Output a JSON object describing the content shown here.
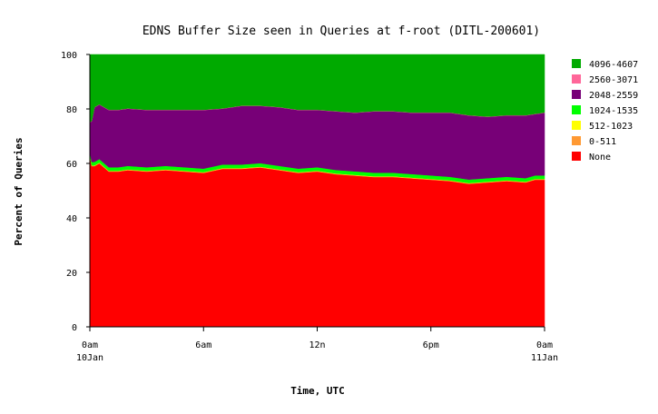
{
  "chart_data": {
    "type": "area",
    "stacked": true,
    "title": "EDNS Buffer Size seen in Queries at f-root (DITL-200601)",
    "xlabel": "Time, UTC",
    "ylabel": "Percent of Queries",
    "ylim": [
      0,
      100
    ],
    "yticks": [
      0,
      20,
      40,
      60,
      80,
      100
    ],
    "xlim_hours": [
      0,
      24
    ],
    "xticks": [
      {
        "hour": 0,
        "label": "0am",
        "sublabel": "10Jan"
      },
      {
        "hour": 6,
        "label": "6am",
        "sublabel": ""
      },
      {
        "hour": 12,
        "label": "12n",
        "sublabel": ""
      },
      {
        "hour": 18,
        "label": "6pm",
        "sublabel": ""
      },
      {
        "hour": 24,
        "label": "0am",
        "sublabel": "11Jan"
      }
    ],
    "legend_position": "right",
    "x_hours": [
      0,
      0.1,
      0.25,
      0.5,
      1,
      1.5,
      2,
      3,
      4,
      5,
      6,
      7,
      8,
      9,
      10,
      11,
      12,
      13,
      14,
      15,
      16,
      17,
      18,
      19,
      20,
      21,
      22,
      23,
      23.5,
      24
    ],
    "series": [
      {
        "name": "None",
        "color": "#ff0000",
        "values": [
          63,
          59,
          59,
          60,
          57,
          57,
          57.5,
          57,
          57.5,
          57,
          56.5,
          58,
          58,
          58.5,
          57.5,
          56.5,
          57,
          56,
          55.5,
          55,
          55,
          54.5,
          54,
          53.5,
          52.5,
          53,
          53.5,
          53,
          54,
          54
        ]
      },
      {
        "name": "0-511",
        "color": "#ff9933",
        "values": [
          0.2,
          0.2,
          0.2,
          0.2,
          0.2,
          0.2,
          0.2,
          0.2,
          0.2,
          0.2,
          0.2,
          0.2,
          0.2,
          0.2,
          0.2,
          0.2,
          0.2,
          0.2,
          0.2,
          0.2,
          0.2,
          0.2,
          0.2,
          0.2,
          0.2,
          0.2,
          0.2,
          0.2,
          0.2,
          0.2
        ]
      },
      {
        "name": "512-1023",
        "color": "#ffff00",
        "values": [
          0.1,
          0.1,
          0.1,
          0.1,
          0.1,
          0.1,
          0.1,
          0.1,
          0.1,
          0.1,
          0.1,
          0.1,
          0.1,
          0.1,
          0.1,
          0.1,
          0.1,
          0.1,
          0.1,
          0.1,
          0.1,
          0.1,
          0.1,
          0.1,
          0.1,
          0.1,
          0.1,
          0.1,
          0.1,
          0.1
        ]
      },
      {
        "name": "1024-1535",
        "color": "#00ff00",
        "values": [
          1.2,
          1.2,
          1.3,
          1.3,
          1.3,
          1.3,
          1.3,
          1.3,
          1.3,
          1.3,
          1.3,
          1.3,
          1.3,
          1.3,
          1.3,
          1.3,
          1.3,
          1.3,
          1.3,
          1.3,
          1.3,
          1.3,
          1.3,
          1.3,
          1.3,
          1.3,
          1.3,
          1.3,
          1.3,
          1.3
        ]
      },
      {
        "name": "2048-2559",
        "color": "#770077",
        "values": [
          10.5,
          15,
          20,
          20,
          21,
          21,
          21,
          21,
          20.5,
          21,
          21.5,
          20.5,
          21.5,
          21,
          21.5,
          21.5,
          21,
          21.5,
          21.5,
          22.5,
          22.5,
          22.5,
          23,
          23.5,
          23.5,
          22.5,
          22.5,
          23,
          22.5,
          23
        ]
      },
      {
        "name": "2560-3071",
        "color": "#ff6699",
        "values": [
          0.1,
          0.1,
          0.1,
          0.1,
          0.1,
          0.1,
          0.1,
          0.1,
          0.1,
          0.1,
          0.1,
          0.1,
          0.1,
          0.1,
          0.1,
          0.1,
          0.1,
          0.1,
          0.1,
          0.1,
          0.1,
          0.1,
          0.1,
          0.1,
          0.1,
          0.1,
          0.1,
          0.1,
          0.1,
          0.1
        ]
      },
      {
        "name": "4096-4607",
        "color": "#00aa00",
        "values": [
          24.9,
          24.4,
          19.3,
          18.3,
          20.3,
          20.3,
          19.8,
          20.3,
          20.3,
          20.3,
          20.3,
          19.8,
          18.8,
          18.8,
          19.3,
          20.3,
          20.3,
          20.8,
          21.3,
          20.8,
          20.8,
          21.3,
          21.3,
          21.3,
          22.3,
          22.8,
          22.3,
          22.3,
          21.8,
          21.3
        ]
      }
    ],
    "legend_order": [
      "4096-4607",
      "2560-3071",
      "2048-2559",
      "1024-1535",
      "512-1023",
      "0-511",
      "None"
    ]
  }
}
